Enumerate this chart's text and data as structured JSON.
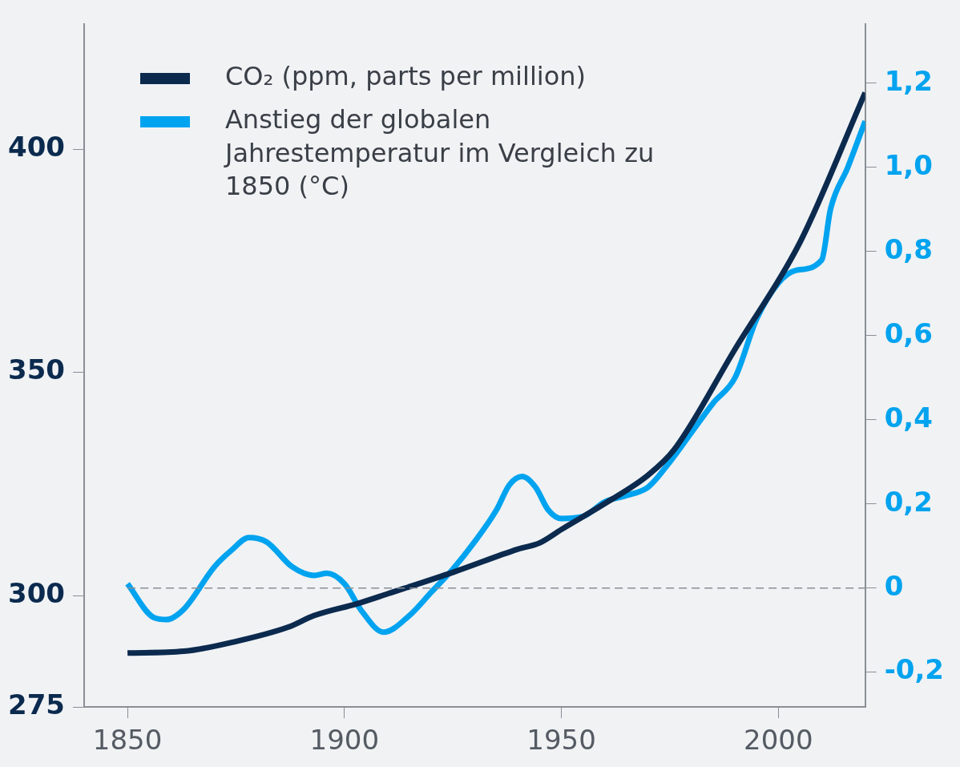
{
  "chart_data": {
    "type": "line",
    "x": [
      1850,
      1863,
      1875,
      1887,
      1893,
      1903,
      1910,
      1925,
      1940,
      1945,
      1950,
      1960,
      1970,
      1976,
      1990,
      2005,
      2020
    ],
    "series": [
      {
        "name": "CO₂ (ppm, parts per million)",
        "color": "#0b2a4e",
        "values": [
          287.1,
          287.5,
          289.7,
          292.9,
          295.5,
          298.2,
          300.4,
          305.2,
          310.4,
          311.8,
          314.8,
          320.6,
          327,
          332.7,
          355.2,
          379.2,
          412.7
        ]
      },
      {
        "name": "Anstieg der globalen Jahrestemperatur im Vergleich zu 1850 (°C)",
        "color": "#00a3ef",
        "axis": "y2",
        "x": [
          1850,
          1856,
          1859,
          1863,
          1870,
          1874,
          1878,
          1882,
          1888,
          1893,
          1896,
          1900,
          1904,
          1909,
          1915,
          1920,
          1925,
          1930,
          1935,
          1938,
          1941,
          1944,
          1947,
          1950,
          1955,
          1960,
          1965,
          1970,
          1975,
          1980,
          1985,
          1990,
          1995,
          2000,
          2004,
          2010,
          2012,
          2016,
          2020
        ],
        "values": [
          0.01,
          -0.07,
          -0.075,
          -0.05,
          0.05,
          0.09,
          0.12,
          0.11,
          0.05,
          0.03,
          0.035,
          0.01,
          -0.055,
          -0.105,
          -0.065,
          -0.01,
          0.045,
          0.11,
          0.185,
          0.245,
          0.265,
          0.24,
          0.185,
          0.165,
          0.17,
          0.205,
          0.22,
          0.24,
          0.3,
          0.37,
          0.44,
          0.5,
          0.64,
          0.725,
          0.755,
          0.78,
          0.9,
          1.0,
          1.11
        ]
      }
    ],
    "xlim": [
      1840,
      2020
    ],
    "xticks": [
      1850,
      1900,
      1950,
      2000
    ],
    "ylim": [
      275,
      428
    ],
    "yticks": [
      275,
      300,
      350,
      400
    ],
    "y2lim": [
      -0.283,
      1.34
    ],
    "y2ticks": [
      {
        "value": -0.2,
        "label": "-0,2"
      },
      {
        "value": 0,
        "label": "0"
      },
      {
        "value": 0.2,
        "label": "0,2"
      },
      {
        "value": 0.4,
        "label": "0,4"
      },
      {
        "value": 0.6,
        "label": "0,6"
      },
      {
        "value": 0.8,
        "label": "0,8"
      },
      {
        "value": 1,
        "label": "1,0"
      },
      {
        "value": 1.2,
        "label": "1,2"
      }
    ],
    "ref_lines": [
      {
        "axis": "y2",
        "value": 0,
        "color": "#8a8f96",
        "line_style": "dashed"
      }
    ],
    "grid": false,
    "legend": "top left",
    "marker": "none",
    "line_style": "solid"
  }
}
